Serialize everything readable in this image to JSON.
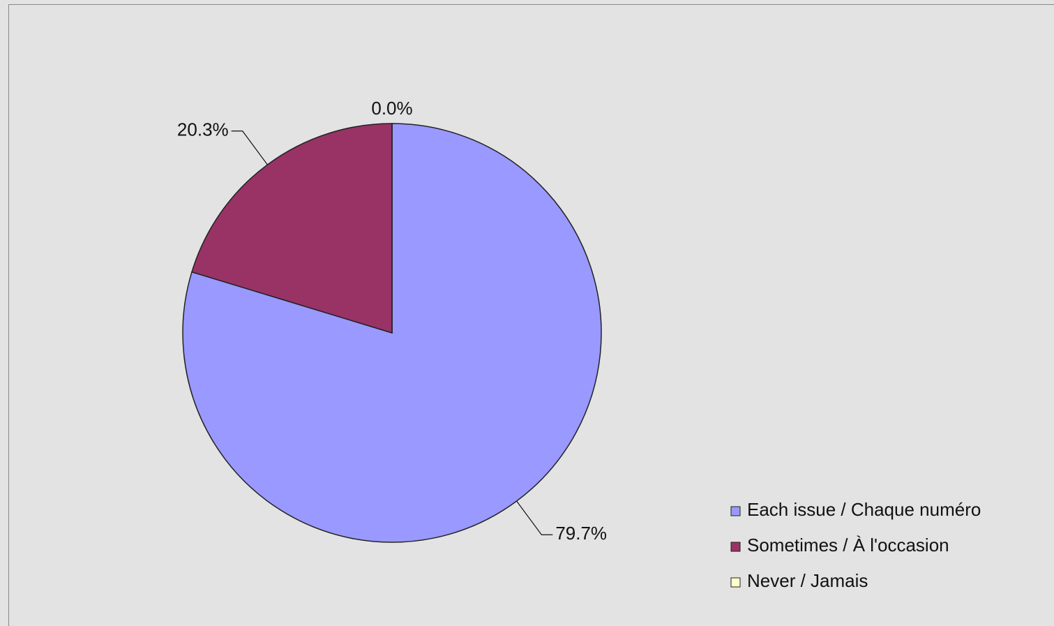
{
  "chart_data": {
    "type": "pie",
    "categories": [
      "Each issue / Chaque numéro",
      "Sometimes / À l'occasion",
      "Never / Jamais"
    ],
    "values": [
      79.7,
      20.3,
      0.0
    ],
    "value_labels": [
      "79.7%",
      "20.3%",
      "0.0%"
    ],
    "colors": [
      "#9999ff",
      "#993366",
      "#ffffcc"
    ],
    "legend": "bottom-right"
  }
}
